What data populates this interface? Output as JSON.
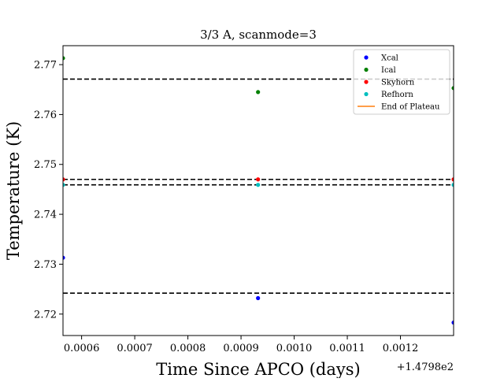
{
  "chart_data": {
    "type": "scatter",
    "title": "3/3 A, scanmode=3",
    "xlabel": "Time Since APCO (days)",
    "ylabel": "Temperature (K)",
    "x_offset_label": "+1.4798e2",
    "xlim": [
      0.000565,
      0.0013
    ],
    "ylim": [
      2.7157,
      2.7738
    ],
    "xticks": [
      0.0006,
      0.0007,
      0.0008,
      0.0009,
      0.001,
      0.0011,
      0.0012
    ],
    "xtick_labels": [
      "0.0006",
      "0.0007",
      "0.0008",
      "0.0009",
      "0.0010",
      "0.0011",
      "0.0012"
    ],
    "yticks": [
      2.72,
      2.73,
      2.74,
      2.75,
      2.76,
      2.77
    ],
    "ytick_labels": [
      "2.72",
      "2.73",
      "2.74",
      "2.75",
      "2.76",
      "2.77"
    ],
    "grid": false,
    "legend_position": "top-right",
    "series": [
      {
        "name": "Xcal",
        "color": "#0000ff",
        "marker": "dot",
        "x": [
          0.000565,
          0.000932,
          0.0013
        ],
        "y": [
          2.7313,
          2.7232,
          2.7183
        ]
      },
      {
        "name": "Ical",
        "color": "#008000",
        "marker": "dot",
        "x": [
          0.000565,
          0.000932,
          0.0013
        ],
        "y": [
          2.7713,
          2.7645,
          2.7653
        ]
      },
      {
        "name": "Skyhorn",
        "color": "#ff0000",
        "marker": "dot",
        "x": [
          0.000565,
          0.000932,
          0.0013
        ],
        "y": [
          2.747,
          2.747,
          2.747
        ]
      },
      {
        "name": "Refhorn",
        "color": "#00bfbf",
        "marker": "dot",
        "x": [
          0.000565,
          0.000932,
          0.0013
        ],
        "y": [
          2.7459,
          2.7459,
          2.7459
        ]
      },
      {
        "name": "End of Plateau",
        "color": "#ff7f0e",
        "marker": "line",
        "x": [],
        "y": []
      }
    ],
    "reference_lines": [
      {
        "y": 2.7671,
        "color": "#000000",
        "style": "dashed"
      },
      {
        "y": 2.747,
        "color": "#000000",
        "style": "dashed"
      },
      {
        "y": 2.7459,
        "color": "#000000",
        "style": "dashed"
      },
      {
        "y": 2.7242,
        "color": "#000000",
        "style": "dashed"
      }
    ]
  }
}
